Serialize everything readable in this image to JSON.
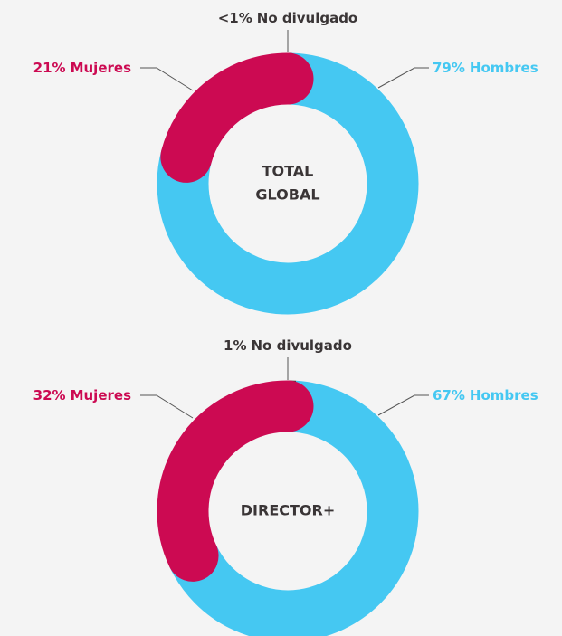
{
  "chart_data": [
    {
      "type": "donut",
      "center_label": [
        "TOTAL",
        "GLOBAL"
      ],
      "categories": [
        "No divulgado",
        "Hombres",
        "Mujeres"
      ],
      "values": [
        0.5,
        79,
        21
      ],
      "value_labels": [
        "<1%",
        "79%",
        "21%"
      ],
      "colors": [
        "#4a3b3d",
        "#45c8f2",
        "#cc0a52"
      ]
    },
    {
      "type": "donut",
      "center_label": [
        "DIRECTOR+"
      ],
      "categories": [
        "No divulgado",
        "Hombres",
        "Mujeres"
      ],
      "values": [
        1,
        67,
        32
      ],
      "value_labels": [
        "1%",
        "67%",
        "32%"
      ],
      "colors": [
        "#4a3b3d",
        "#45c8f2",
        "#cc0a52"
      ]
    }
  ]
}
